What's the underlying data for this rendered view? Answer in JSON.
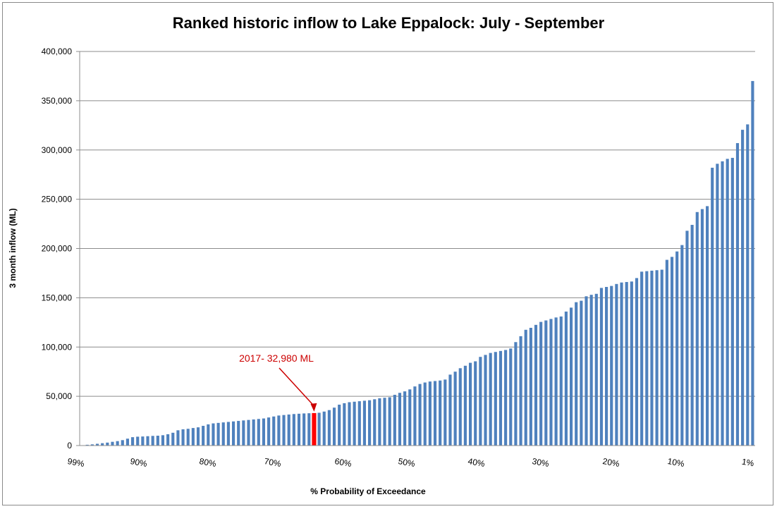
{
  "chart_data": {
    "type": "bar",
    "title": "Ranked historic inflow to Lake Eppalock: July - September",
    "xlabel": "% Probability of Exceedance",
    "ylabel": "3 month inflow (ML)",
    "ylim": [
      0,
      400000
    ],
    "y_ticks": [
      0,
      50000,
      100000,
      150000,
      200000,
      250000,
      300000,
      350000,
      400000
    ],
    "y_tick_labels": [
      "0",
      "50,000",
      "100,000",
      "150,000",
      "200,000",
      "250,000",
      "300,000",
      "350,000",
      "400,000"
    ],
    "x_tick_labels": [
      "99%",
      "90%",
      "80%",
      "70%",
      "60%",
      "50%",
      "40%",
      "30%",
      "20%",
      "10%",
      "1%"
    ],
    "grid": "horizontal",
    "legend": "none",
    "bar_color": "#4f81bd",
    "highlight_color": "#ff0000",
    "highlight_index": 46,
    "annotation": {
      "text": "2017- 32,980 ML",
      "value": 32980,
      "color": "#cc0000"
    },
    "values": [
      300,
      800,
      1200,
      1800,
      2400,
      3000,
      3800,
      4500,
      5500,
      7000,
      8500,
      9000,
      9200,
      9500,
      9800,
      10000,
      10500,
      11500,
      13000,
      15500,
      16500,
      17000,
      17800,
      18500,
      20000,
      21500,
      22500,
      23000,
      23500,
      24000,
      24500,
      25000,
      25500,
      26000,
      26500,
      27000,
      27500,
      28500,
      29500,
      30500,
      31000,
      31500,
      32000,
      32300,
      32600,
      32800,
      32980,
      33300,
      34500,
      36000,
      38500,
      41500,
      43000,
      44000,
      44500,
      45000,
      45500,
      46000,
      47000,
      48000,
      48500,
      49000,
      51500,
      53500,
      55000,
      57000,
      60000,
      62500,
      64000,
      65000,
      65500,
      66000,
      67000,
      72000,
      75000,
      78500,
      81000,
      84000,
      85500,
      90000,
      92000,
      94000,
      95000,
      96000,
      97000,
      98500,
      105000,
      111000,
      117500,
      119500,
      122500,
      125500,
      127000,
      128500,
      130000,
      131000,
      136000,
      140000,
      145500,
      147000,
      151500,
      153000,
      154000,
      160000,
      161000,
      162000,
      164000,
      165500,
      166000,
      166500,
      170000,
      176500,
      177000,
      177500,
      178000,
      178500,
      188500,
      191500,
      197000,
      203500,
      218000,
      224000,
      237000,
      240000,
      243000,
      282000,
      286000,
      288500,
      291000,
      292000,
      307000,
      320500,
      326000,
      370000
    ]
  }
}
